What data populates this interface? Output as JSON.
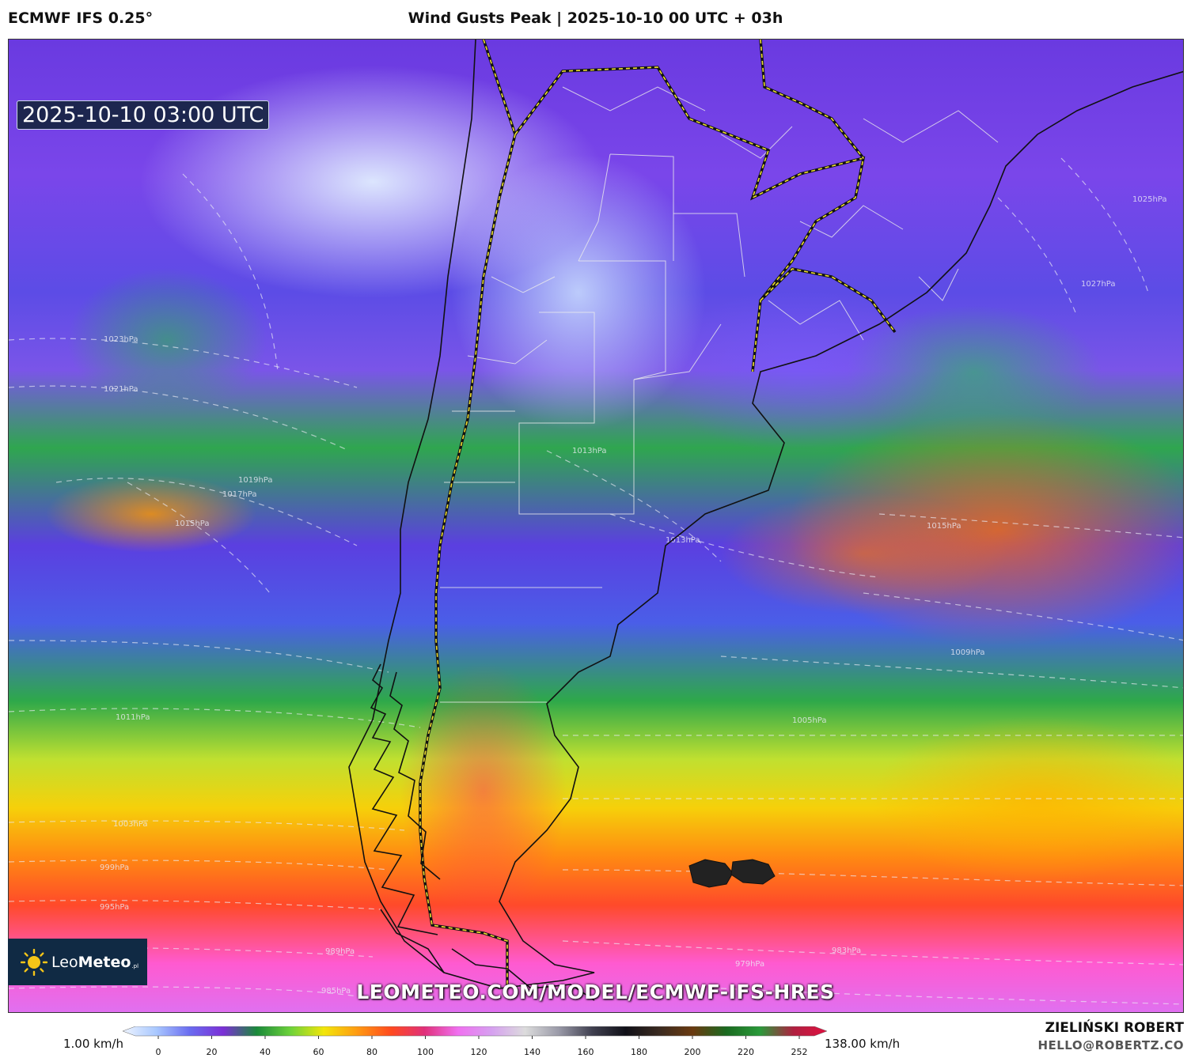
{
  "header": {
    "model": "ECMWF IFS 0.25°",
    "title": "Wind Gusts Peak | 2025-10-10 00 UTC + 03h"
  },
  "map": {
    "timestamp": "2025-10-10 03:00 UTC",
    "url_watermark": "LEOMETEO.COM/MODEL/ECMWF-IFS-HRES",
    "isobar_labels": [
      "1023hPa",
      "1021hPa",
      "1019hPa",
      "1017hPa",
      "1015hPa",
      "1013hPa",
      "1011hPa",
      "1009hPa",
      "1005hPa",
      "1003hPa",
      "999hPa",
      "995hPa",
      "989hPa",
      "985hPa",
      "983hPa",
      "979hPa",
      "1025hPa",
      "1027hPa",
      "1015hPa",
      "1013hPa"
    ]
  },
  "logo": {
    "name_light": "Leo",
    "name_bold": "Meteo",
    "suffix": ".pl"
  },
  "colorbar": {
    "min_label": "1.00 km/h",
    "max_label": "138.00 km/h",
    "ticks": [
      "0",
      "20",
      "40",
      "60",
      "80",
      "100",
      "120",
      "140",
      "160",
      "180",
      "200",
      "220",
      "252"
    ],
    "colors": [
      "#eef4ff",
      "#a9c8ff",
      "#6a6cf0",
      "#7b2fd6",
      "#1a8a3a",
      "#6cd23a",
      "#f2e60a",
      "#ff9a12",
      "#ff4a1f",
      "#e0307a",
      "#f070f0",
      "#d6a0f0",
      "#dcdcdc",
      "#9a9aa8",
      "#404050",
      "#101018",
      "#3a2a20",
      "#6a3a10",
      "#1a6a20",
      "#2a9a3a",
      "#b02040",
      "#e01040"
    ]
  },
  "credits": {
    "author": "ZIELIŃSKI ROBERT",
    "email": "HELLO@ROBERTZ.CO"
  }
}
